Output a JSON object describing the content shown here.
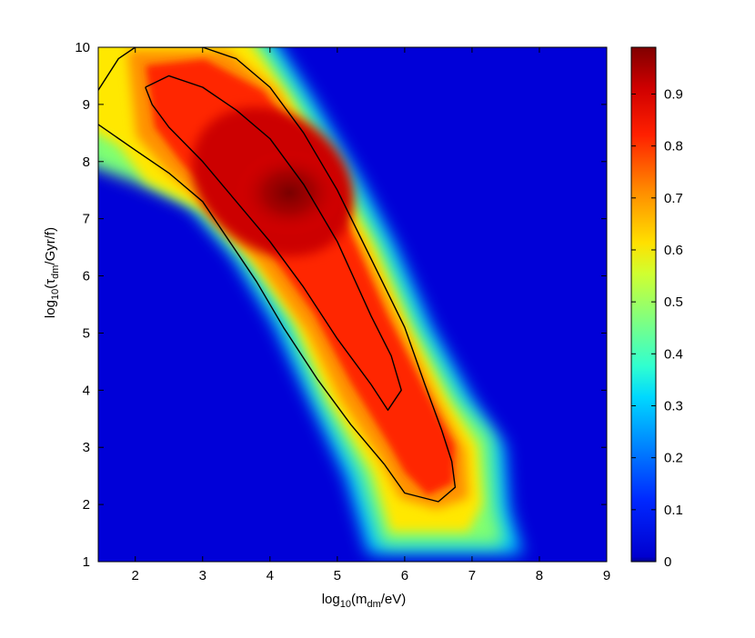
{
  "chart_data": {
    "type": "heatmap",
    "title": "",
    "xlabel": {
      "base": "log",
      "sub": "10",
      "open": "(m",
      "varsub": "dm",
      "close": "/eV)"
    },
    "ylabel": {
      "base": "log",
      "sub": "10",
      "open": "(τ",
      "varsub": "dm",
      "close": "/Gyr/f)"
    },
    "xlim": [
      1.45,
      9
    ],
    "ylim": [
      1,
      10
    ],
    "xticks": [
      2,
      3,
      4,
      5,
      6,
      7,
      8,
      9
    ],
    "yticks": [
      1,
      2,
      3,
      4,
      5,
      6,
      7,
      8,
      9,
      10
    ],
    "colorbar": {
      "range": [
        0,
        0.99
      ],
      "ticks": [
        0,
        0.1,
        0.2,
        0.3,
        0.4,
        0.5,
        0.6,
        0.7,
        0.8,
        0.9
      ],
      "colormap": "jet"
    },
    "peak": {
      "x": 4.3,
      "y": 7.5,
      "value": 0.99
    },
    "contours": [
      {
        "level": "inner",
        "points": [
          [
            2.15,
            9.3
          ],
          [
            2.5,
            9.5
          ],
          [
            3.0,
            9.3
          ],
          [
            3.5,
            8.9
          ],
          [
            4.0,
            8.4
          ],
          [
            4.5,
            7.6
          ],
          [
            5.0,
            6.6
          ],
          [
            5.5,
            5.3
          ],
          [
            5.8,
            4.6
          ],
          [
            5.95,
            4.0
          ],
          [
            5.75,
            3.65
          ],
          [
            5.5,
            4.1
          ],
          [
            5.0,
            4.9
          ],
          [
            4.5,
            5.8
          ],
          [
            4.0,
            6.6
          ],
          [
            3.5,
            7.3
          ],
          [
            3.0,
            8.0
          ],
          [
            2.5,
            8.6
          ],
          [
            2.25,
            9.0
          ],
          [
            2.15,
            9.3
          ]
        ]
      },
      {
        "level": "outer-upper",
        "points": [
          [
            1.45,
            9.25
          ],
          [
            1.75,
            9.8
          ],
          [
            2.0,
            10.0
          ],
          [
            3.0,
            10.0
          ],
          [
            3.5,
            9.8
          ],
          [
            4.0,
            9.3
          ],
          [
            4.5,
            8.5
          ],
          [
            5.0,
            7.5
          ],
          [
            5.5,
            6.3
          ],
          [
            6.0,
            5.1
          ],
          [
            6.3,
            4.1
          ],
          [
            6.55,
            3.3
          ],
          [
            6.7,
            2.75
          ],
          [
            6.75,
            2.3
          ],
          [
            6.5,
            2.05
          ],
          [
            6.0,
            2.2
          ],
          [
            5.7,
            2.7
          ]
        ]
      },
      {
        "level": "outer-lower",
        "points": [
          [
            5.7,
            2.7
          ],
          [
            5.2,
            3.4
          ],
          [
            4.7,
            4.2
          ],
          [
            4.2,
            5.1
          ],
          [
            3.8,
            5.9
          ],
          [
            3.4,
            6.6
          ],
          [
            3.0,
            7.3
          ],
          [
            2.5,
            7.8
          ],
          [
            2.0,
            8.2
          ],
          [
            1.45,
            8.65
          ]
        ]
      }
    ]
  }
}
